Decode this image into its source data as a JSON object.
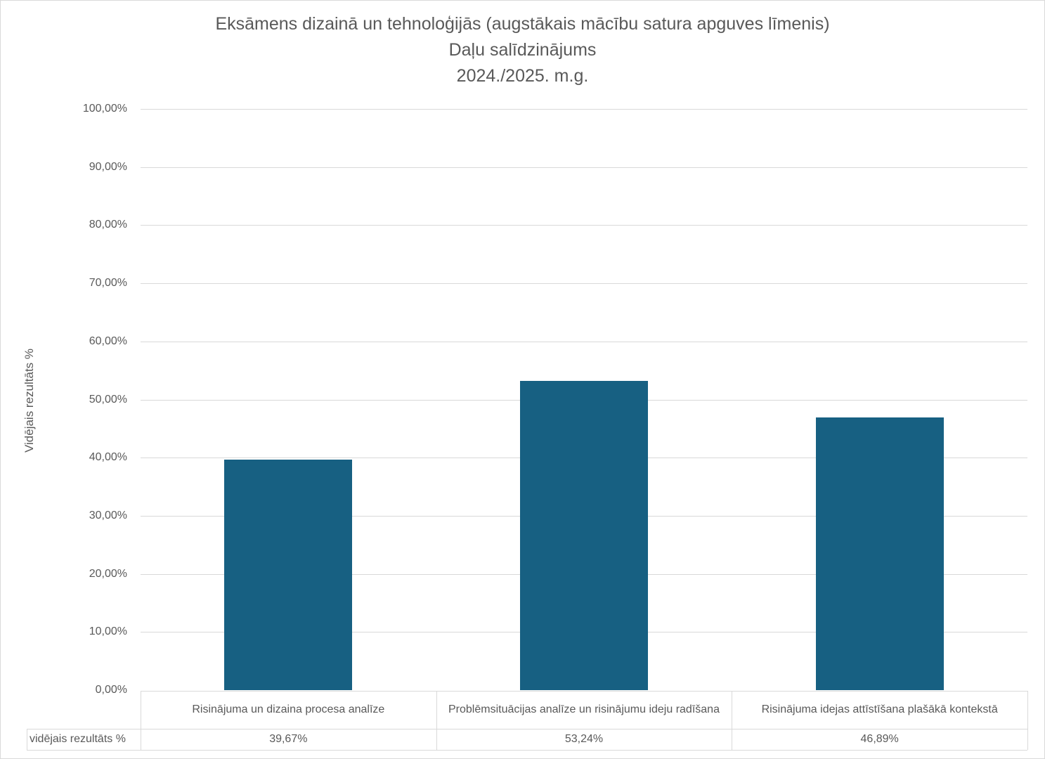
{
  "chart_data": {
    "type": "bar",
    "title": [
      "Eksāmens dizainā un tehnoloģijās (augstākais mācību satura apguves līmenis)",
      "Daļu salīdzinājums",
      "2024./2025. m.g."
    ],
    "ylabel": "Vidējais rezultāts %",
    "xlabel": "",
    "ylim": [
      0,
      100
    ],
    "yticks": [
      0,
      10,
      20,
      30,
      40,
      50,
      60,
      70,
      80,
      90,
      100
    ],
    "ytick_labels": [
      "0,00%",
      "10,00%",
      "20,00%",
      "30,00%",
      "40,00%",
      "50,00%",
      "60,00%",
      "70,00%",
      "80,00%",
      "90,00%",
      "100,00%"
    ],
    "grid": true,
    "categories": [
      "Risinājuma un dizaina procesa analīze",
      "Problēmsituācijas analīze un risinājumu ideju radīšana",
      "Risinājuma idejas attīstīšana plašākā kontekstā"
    ],
    "series": [
      {
        "name": "vidējais rezultāts %",
        "values": [
          39.67,
          53.24,
          46.89
        ],
        "labels": [
          "39,67%",
          "53,24%",
          "46,89%"
        ],
        "color": "#176082"
      }
    ],
    "data_table": true
  }
}
